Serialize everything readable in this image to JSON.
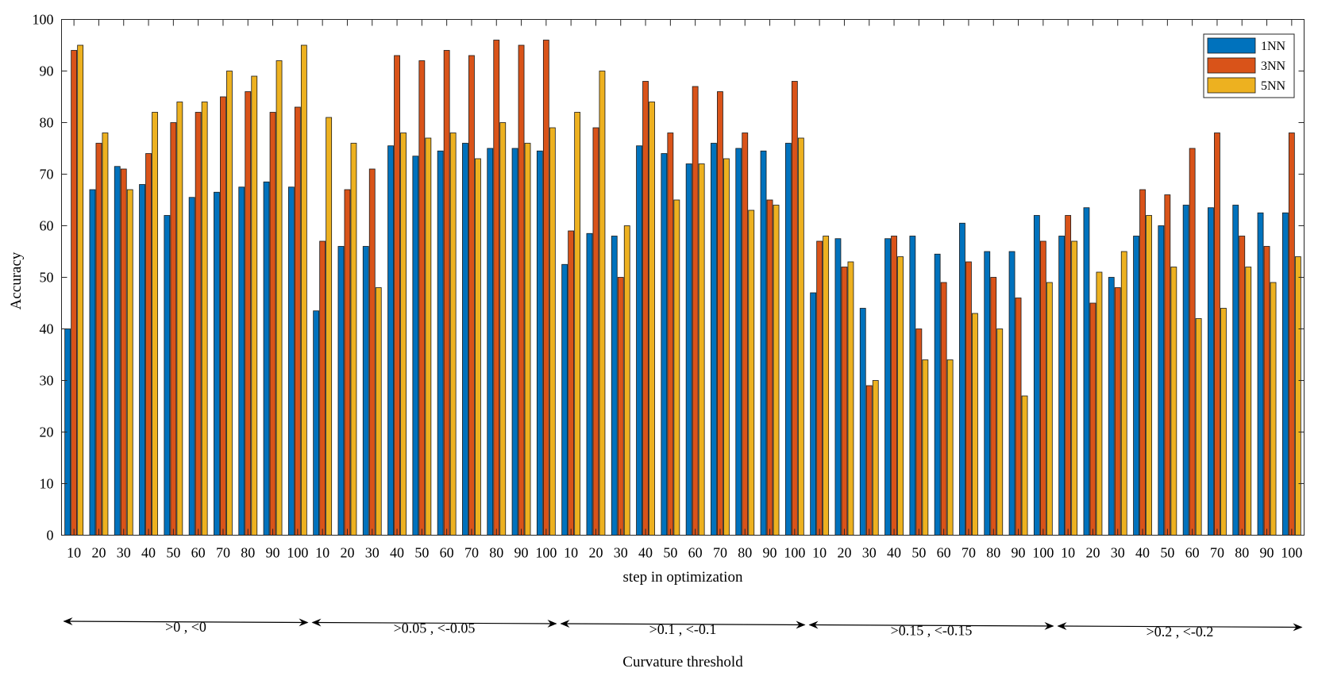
{
  "chart_data": {
    "type": "bar",
    "xlabel": "step in optimization",
    "ylabel": "Accuracy",
    "ylim": [
      0,
      100
    ],
    "yticks": [
      0,
      10,
      20,
      30,
      40,
      50,
      60,
      70,
      80,
      90,
      100
    ],
    "grid": false,
    "legend_position": "top-right",
    "categories": [
      "10",
      "20",
      "30",
      "40",
      "50",
      "60",
      "70",
      "80",
      "90",
      "100",
      "10",
      "20",
      "30",
      "40",
      "50",
      "60",
      "70",
      "80",
      "90",
      "100",
      "10",
      "20",
      "30",
      "40",
      "50",
      "60",
      "70",
      "80",
      "90",
      "100",
      "10",
      "20",
      "30",
      "40",
      "50",
      "60",
      "70",
      "80",
      "90",
      "100",
      "10",
      "20",
      "30",
      "40",
      "50",
      "60",
      "70",
      "80",
      "90",
      "100"
    ],
    "series": [
      {
        "name": "1NN",
        "color": "#0072BD",
        "values": [
          40,
          67,
          71.5,
          68,
          62,
          65.5,
          66.5,
          67.5,
          68.5,
          67.5,
          43.5,
          56,
          56,
          75.5,
          73.5,
          74.5,
          76,
          75,
          75,
          74.5,
          52.5,
          58.5,
          58,
          75.5,
          74,
          72,
          76,
          75,
          74.5,
          76,
          47,
          57.5,
          44,
          57.5,
          58,
          54.5,
          60.5,
          55,
          55,
          62,
          58,
          63.5,
          50,
          58,
          60,
          64,
          63.5,
          64,
          62.5,
          62.5
        ]
      },
      {
        "name": "3NN",
        "color": "#D95319",
        "values": [
          94,
          76,
          71,
          74,
          80,
          82,
          85,
          86,
          82,
          83,
          57,
          67,
          71,
          93,
          92,
          94,
          93,
          96,
          95,
          96,
          59,
          79,
          50,
          88,
          78,
          87,
          86,
          78,
          65,
          88,
          57,
          52,
          29,
          58,
          40,
          49,
          53,
          50,
          46,
          57,
          62,
          45,
          48,
          67,
          66,
          75,
          78,
          58,
          56,
          78
        ]
      },
      {
        "name": "5NN",
        "color": "#EDB120",
        "values": [
          95,
          78,
          67,
          82,
          84,
          84,
          90,
          89,
          92,
          95,
          81,
          76,
          48,
          78,
          77,
          78,
          73,
          80,
          76,
          79,
          82,
          90,
          60,
          84,
          65,
          72,
          73,
          63,
          64,
          77,
          58,
          53,
          30,
          54,
          34,
          34,
          43,
          40,
          27,
          49,
          57,
          51,
          55,
          62,
          52,
          42,
          44,
          52,
          49,
          54
        ]
      }
    ],
    "groups": [
      ">0 , <0",
      ">0.05 , <-0.05",
      ">0.1 , <-0.1",
      ">0.15 , <-0.15",
      ">0.2 , <-0.2"
    ],
    "group_axis_label": "Curvature threshold"
  }
}
